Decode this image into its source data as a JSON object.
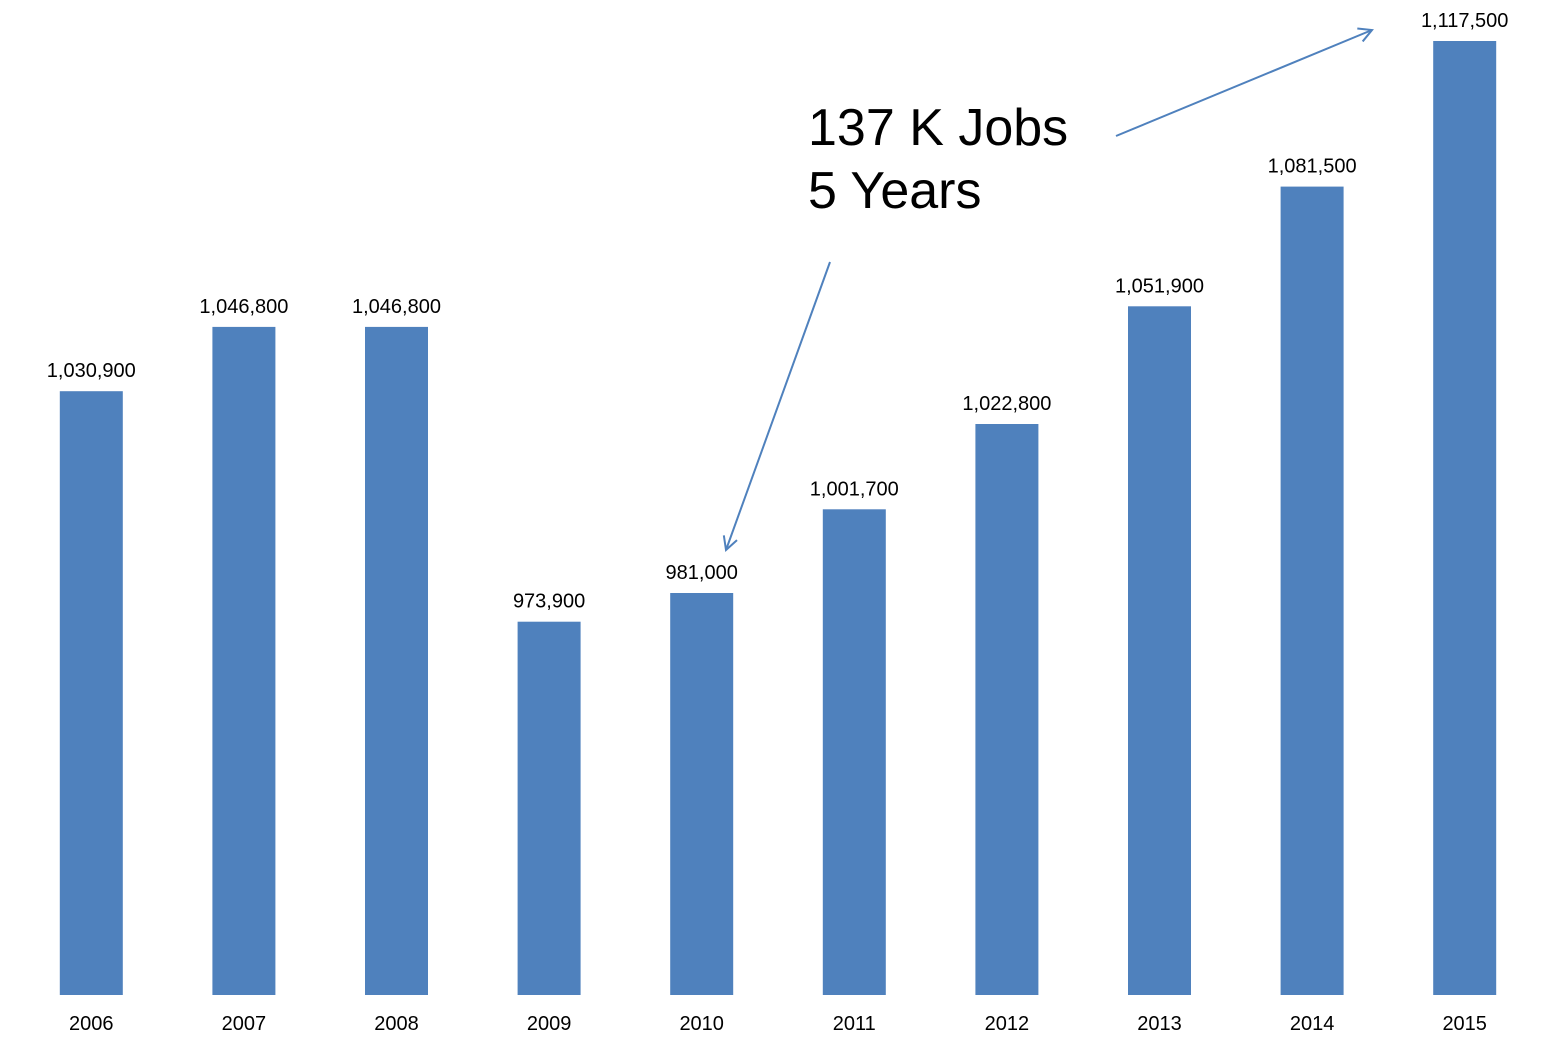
{
  "chart_data": {
    "type": "bar",
    "categories": [
      "2006",
      "2007",
      "2008",
      "2009",
      "2010",
      "2011",
      "2012",
      "2013",
      "2014",
      "2015"
    ],
    "values": [
      1030900,
      1046800,
      1046800,
      973900,
      981000,
      1001700,
      1022800,
      1051900,
      1081500,
      1117500
    ],
    "value_labels": [
      "1,030,900",
      "1,046,800",
      "1,046,800",
      "973,900",
      "981,000",
      "1,001,700",
      "1,022,800",
      "1,051,900",
      "1,081,500",
      "1,117,500"
    ],
    "title": "",
    "xlabel": "",
    "ylabel": "",
    "ylim": [
      900000,
      1120000
    ],
    "grid": false,
    "legend": "none",
    "annotation": {
      "lines": [
        "137 K Jobs",
        "5 Years"
      ],
      "arrow_targets": [
        "2010",
        "2015"
      ]
    },
    "colors": {
      "bar": "#4F81BD",
      "arrow": "#4F81BD",
      "text": "#000000"
    }
  }
}
